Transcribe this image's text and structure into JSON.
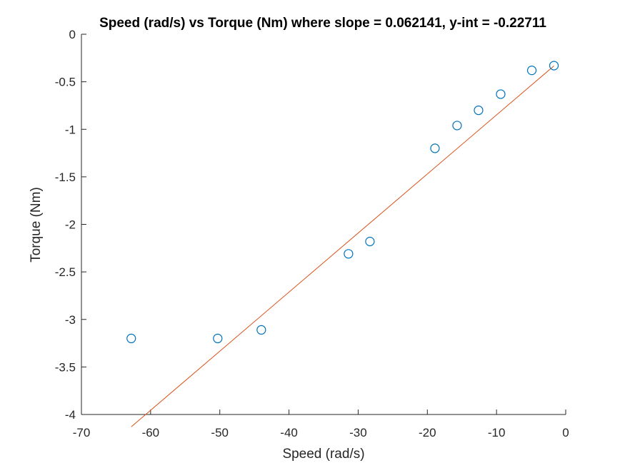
{
  "chart_data": {
    "type": "scatter",
    "title": "Speed (rad/s) vs Torque (Nm) where slope = 0.062141, y-int = -0.22711",
    "xlabel": "Speed (rad/s)",
    "ylabel": "Torque (Nm)",
    "xlim": [
      -70,
      0
    ],
    "ylim": [
      -4,
      0
    ],
    "xticks": [
      -70,
      -60,
      -50,
      -40,
      -30,
      -20,
      -10,
      0
    ],
    "xtick_labels": [
      "-70",
      "-60",
      "-50",
      "-40",
      "-30",
      "-20",
      "-10",
      "0"
    ],
    "yticks": [
      0,
      -0.5,
      -1,
      -1.5,
      -2,
      -2.5,
      -3,
      -3.5,
      -4
    ],
    "ytick_labels": [
      "0",
      "-0.5",
      "-1",
      "-1.5",
      "-2",
      "-2.5",
      "-3",
      "-3.5",
      "-4"
    ],
    "grid": false,
    "box": "left-bottom",
    "series": [
      {
        "type": "scatter",
        "marker": "circle",
        "color": "#0072BD",
        "x": [
          -62.8,
          -50.3,
          -44.0,
          -31.4,
          -28.3,
          -18.9,
          -15.7,
          -12.6,
          -9.4,
          -4.9,
          -1.7
        ],
        "y": [
          -3.2,
          -3.2,
          -3.11,
          -2.31,
          -2.18,
          -1.2,
          -0.96,
          -0.8,
          -0.63,
          -0.38,
          -0.33
        ]
      },
      {
        "type": "line",
        "color": "#D95319",
        "slope": 0.062141,
        "intercept": -0.22711,
        "x": [
          -62.8,
          -1.7
        ]
      }
    ]
  }
}
